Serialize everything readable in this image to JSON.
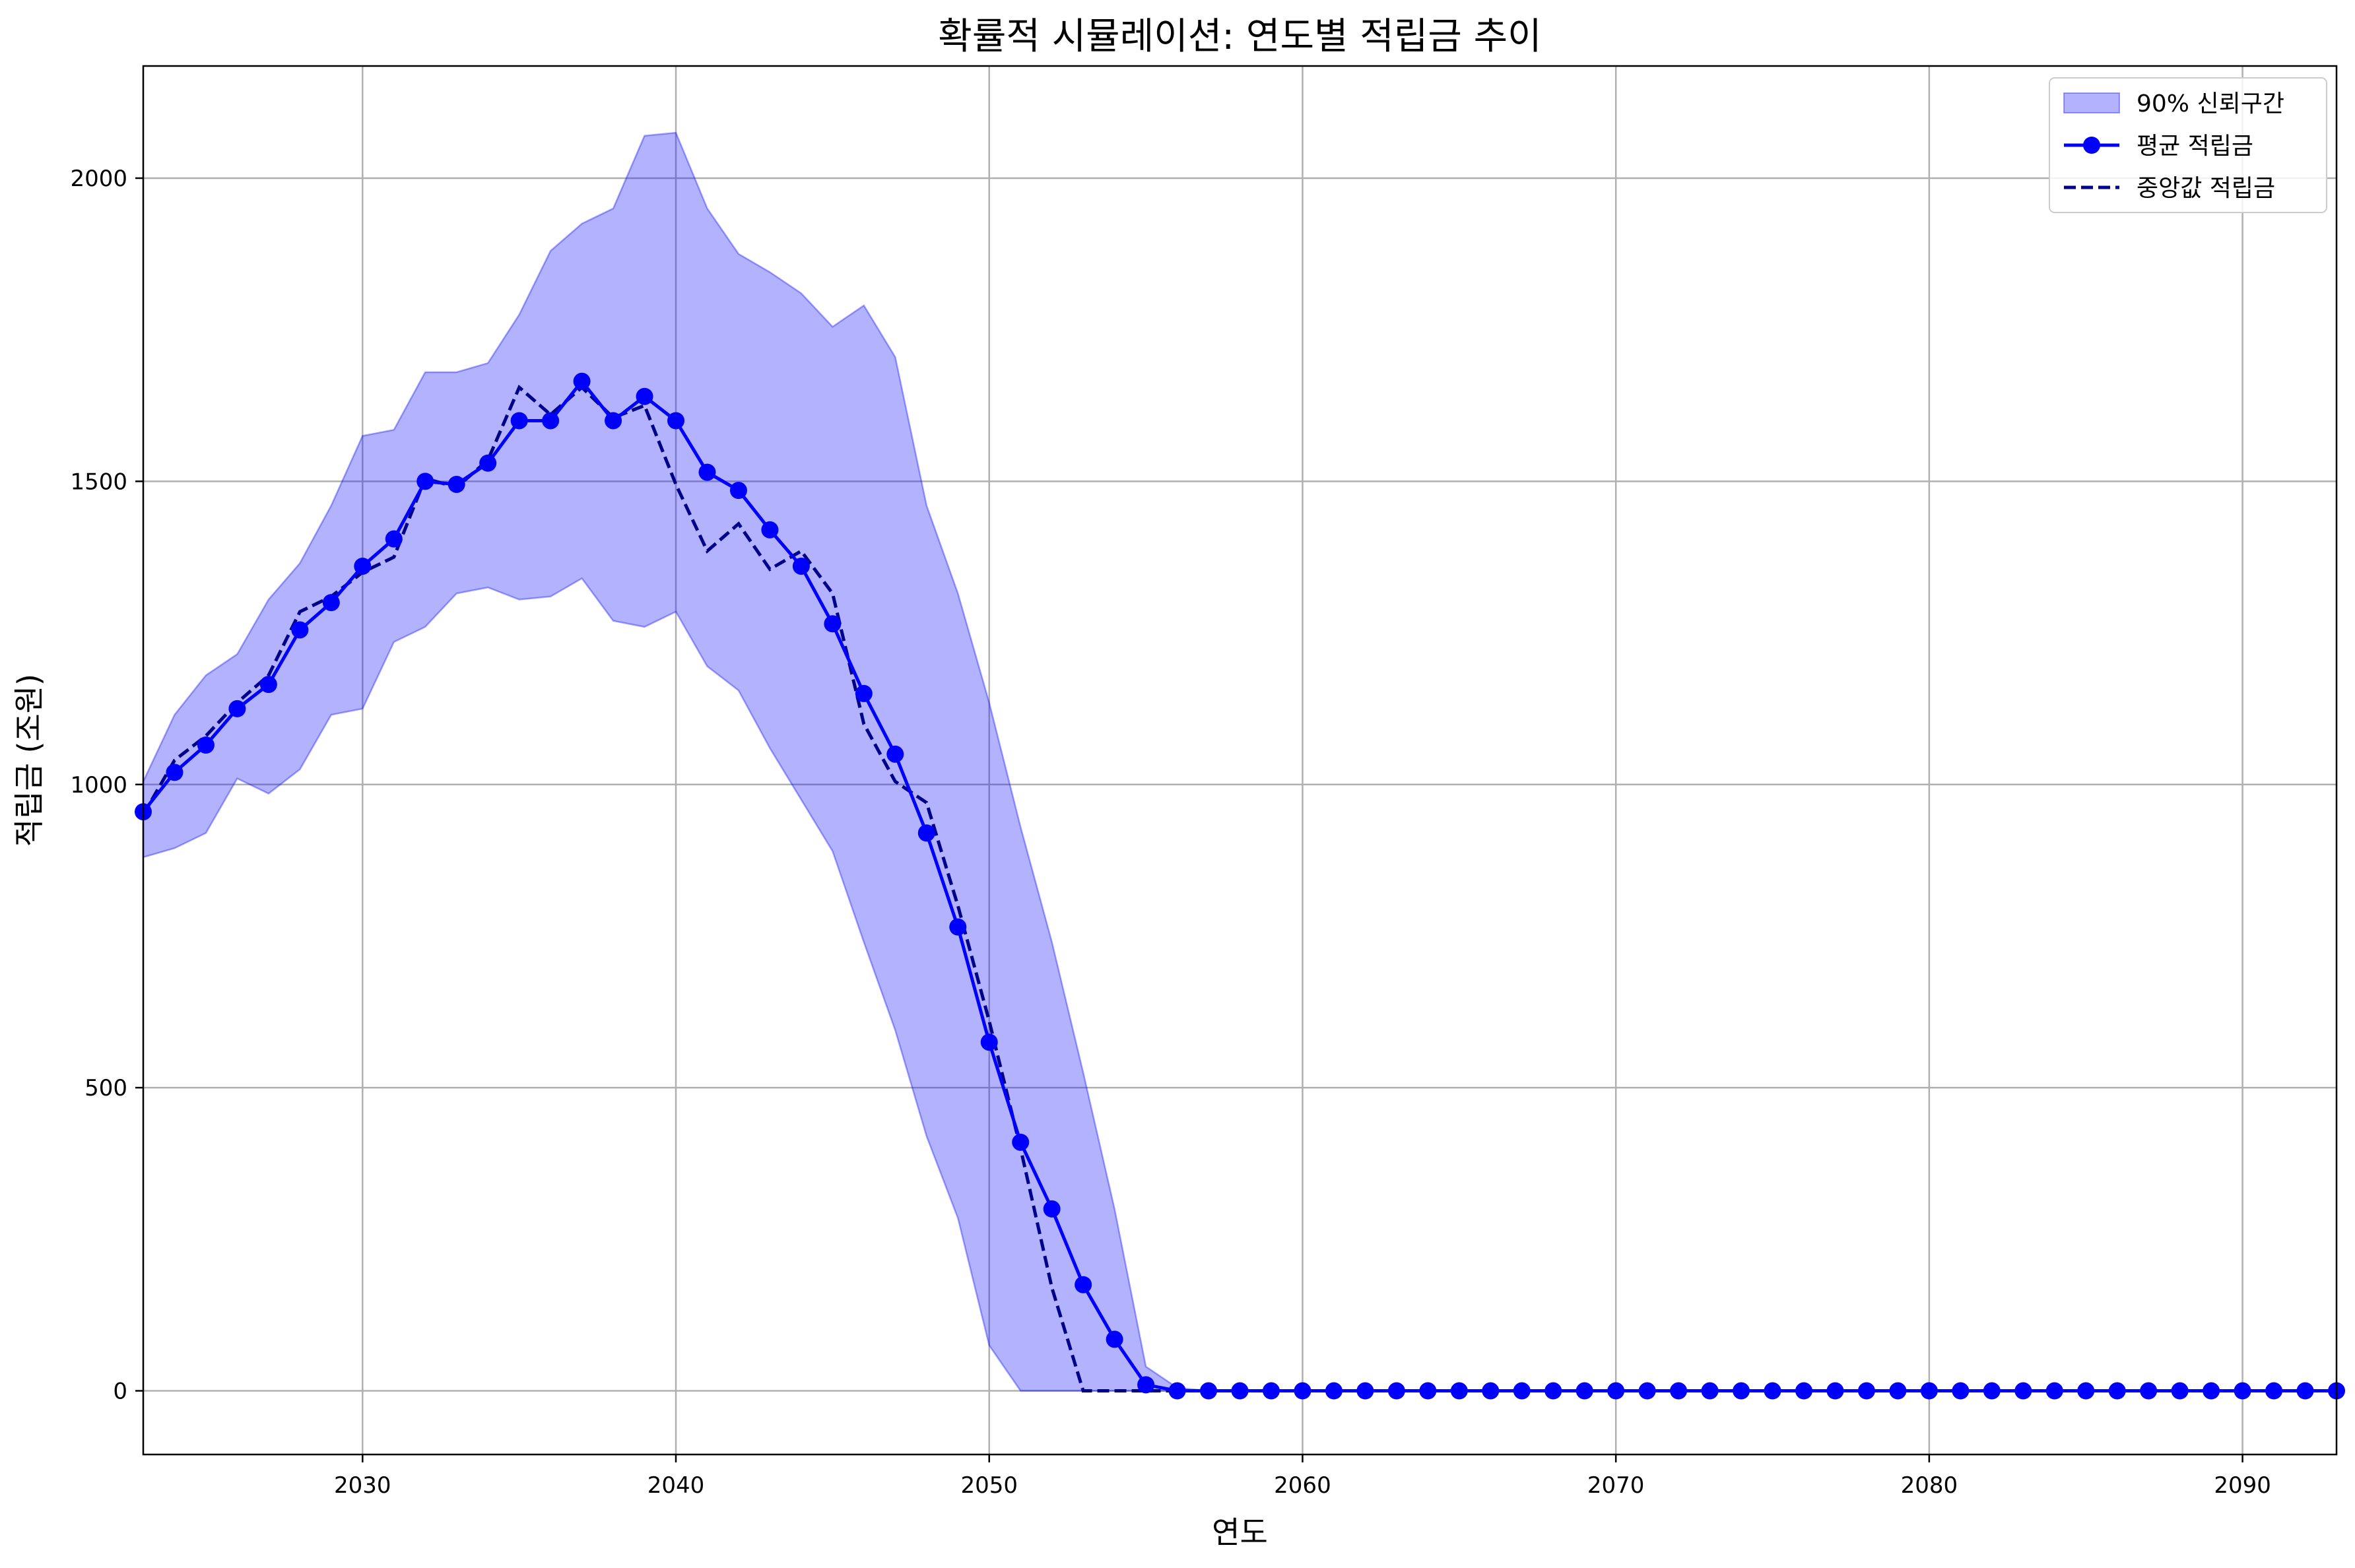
{
  "chart_data": {
    "type": "line",
    "title": "확률적 시뮬레이션: 연도별 적립금 추이",
    "xlabel": "연도",
    "ylabel": "적립금 (조원)",
    "xlim": [
      2023,
      2093
    ],
    "ylim": [
      -105,
      2185
    ],
    "x_ticks": [
      2030,
      2040,
      2050,
      2060,
      2070,
      2080,
      2090
    ],
    "y_ticks": [
      0,
      500,
      1000,
      1500,
      2000
    ],
    "grid": true,
    "legend_position": "top-right",
    "x": [
      2023,
      2024,
      2025,
      2026,
      2027,
      2028,
      2029,
      2030,
      2031,
      2032,
      2033,
      2034,
      2035,
      2036,
      2037,
      2038,
      2039,
      2040,
      2041,
      2042,
      2043,
      2044,
      2045,
      2046,
      2047,
      2048,
      2049,
      2050,
      2051,
      2052,
      2053,
      2054,
      2055,
      2056,
      2057,
      2058,
      2059,
      2060,
      2061,
      2062,
      2063,
      2064,
      2065,
      2066,
      2067,
      2068,
      2069,
      2070,
      2071,
      2072,
      2073,
      2074,
      2075,
      2076,
      2077,
      2078,
      2079,
      2080,
      2081,
      2082,
      2083,
      2084,
      2085,
      2086,
      2087,
      2088,
      2089,
      2090,
      2091,
      2092,
      2093
    ],
    "series": [
      {
        "name": "90% 신뢰구간",
        "kind": "band",
        "color": "#0000ff",
        "upper": [
          1005,
          1115,
          1180,
          1215,
          1305,
          1365,
          1460,
          1575,
          1585,
          1680,
          1680,
          1695,
          1775,
          1880,
          1925,
          1950,
          2070,
          2075,
          1950,
          1875,
          1845,
          1810,
          1755,
          1790,
          1705,
          1460,
          1315,
          1135,
          930,
          740,
          525,
          300,
          40,
          5,
          0,
          0,
          0,
          0,
          0,
          0,
          0,
          0,
          0,
          0,
          0,
          0,
          0,
          0,
          0,
          0,
          0,
          0,
          0,
          0,
          0,
          0,
          0,
          0,
          0,
          0,
          0,
          0,
          0,
          0,
          0,
          0,
          0,
          0,
          0,
          0,
          0
        ],
        "lower": [
          880,
          895,
          920,
          1010,
          985,
          1025,
          1115,
          1125,
          1235,
          1260,
          1315,
          1325,
          1305,
          1310,
          1340,
          1270,
          1260,
          1285,
          1195,
          1155,
          1060,
          975,
          890,
          740,
          595,
          420,
          285,
          75,
          0,
          0,
          0,
          0,
          0,
          0,
          0,
          0,
          0,
          0,
          0,
          0,
          0,
          0,
          0,
          0,
          0,
          0,
          0,
          0,
          0,
          0,
          0,
          0,
          0,
          0,
          0,
          0,
          0,
          0,
          0,
          0,
          0,
          0,
          0,
          0,
          0,
          0,
          0,
          0,
          0,
          0,
          0
        ]
      },
      {
        "name": "평균 적립금",
        "kind": "line-markers",
        "color": "#0000ff",
        "values": [
          955,
          1020,
          1065,
          1125,
          1165,
          1255,
          1300,
          1360,
          1405,
          1500,
          1495,
          1530,
          1600,
          1600,
          1665,
          1600,
          1640,
          1600,
          1515,
          1485,
          1420,
          1360,
          1265,
          1150,
          1050,
          920,
          765,
          575,
          410,
          300,
          175,
          85,
          10,
          0,
          0,
          0,
          0,
          0,
          0,
          0,
          0,
          0,
          0,
          0,
          0,
          0,
          0,
          0,
          0,
          0,
          0,
          0,
          0,
          0,
          0,
          0,
          0,
          0,
          0,
          0,
          0,
          0,
          0,
          0,
          0,
          0,
          0,
          0,
          0,
          0,
          0
        ]
      },
      {
        "name": "중앙값 적립금",
        "kind": "dashed-line",
        "color": "#00008b",
        "values": [
          950,
          1040,
          1080,
          1135,
          1180,
          1285,
          1310,
          1350,
          1375,
          1505,
          1490,
          1535,
          1655,
          1610,
          1655,
          1605,
          1625,
          1495,
          1385,
          1430,
          1355,
          1385,
          1315,
          1100,
          1005,
          970,
          800,
          610,
          400,
          170,
          0,
          0,
          0,
          0,
          0,
          0,
          0,
          0,
          0,
          0,
          0,
          0,
          0,
          0,
          0,
          0,
          0,
          0,
          0,
          0,
          0,
          0,
          0,
          0,
          0,
          0,
          0,
          0,
          0,
          0,
          0,
          0,
          0,
          0,
          0,
          0,
          0,
          0,
          0,
          0,
          0
        ]
      }
    ]
  }
}
